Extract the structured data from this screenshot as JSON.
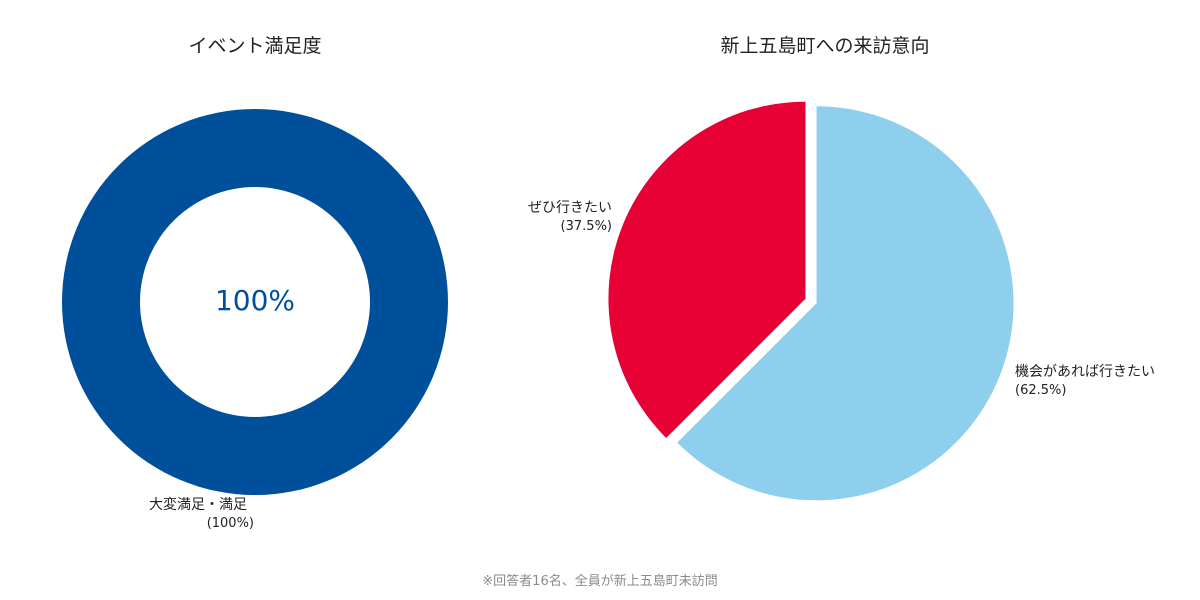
{
  "chart_data": [
    {
      "type": "pie",
      "variant": "donut",
      "title": "イベント満足度",
      "center_label": "100%",
      "slices": [
        {
          "label": "大変満足・満足",
          "value_label": "(100%)",
          "value": 100,
          "color": "#004f9b"
        }
      ]
    },
    {
      "type": "pie",
      "title": "新上五島町への来訪意向",
      "slices": [
        {
          "label": "機会があれば行きたい",
          "value_label": "(62.5%)",
          "value": 62.5,
          "color": "#8ecfee"
        },
        {
          "label": "ぜひ行きたい",
          "value_label": "(37.5%)",
          "value": 37.5,
          "color": "#e60034"
        }
      ]
    }
  ],
  "footnote": "※回答者16名、全員が新上五島町未訪問"
}
